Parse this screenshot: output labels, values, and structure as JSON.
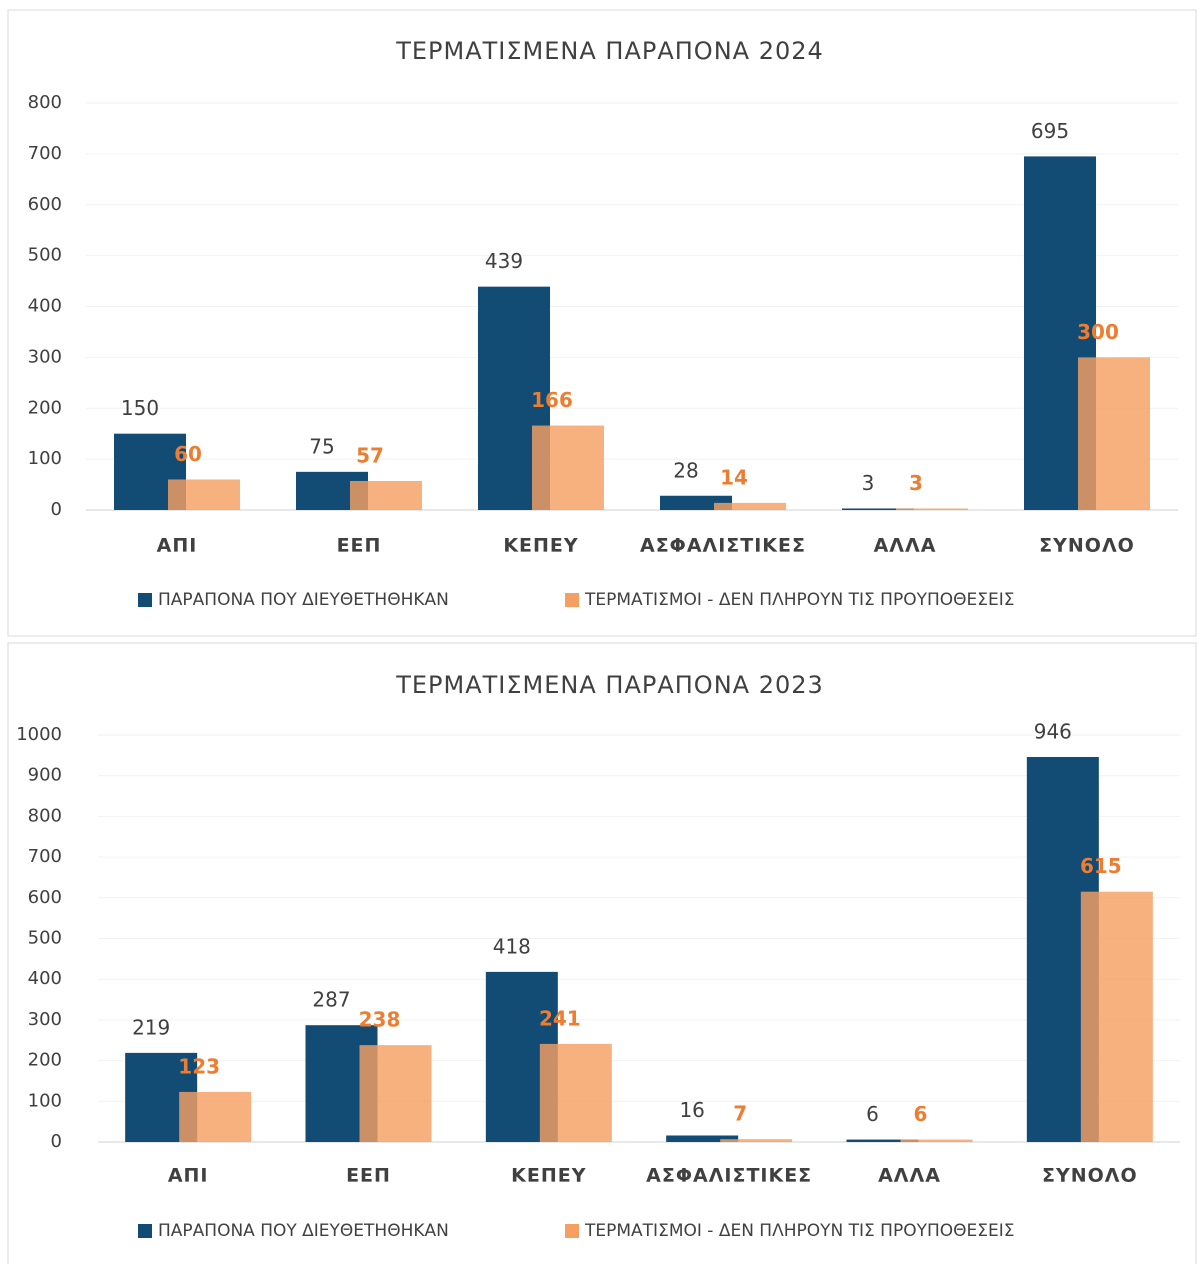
{
  "chart_data": [
    {
      "type": "bar",
      "title": "ΤΕΡΜΑΤΙΣΜΕΝΑ ΠΑΡΑΠΟΝΑ 2024",
      "categories": [
        "ΑΠΙ",
        "ΕΕΠ",
        "ΚΕΠΕΥ",
        "ΑΣΦΑΛΙΣΤΙΚΕΣ",
        "ΑΛΛΑ",
        "ΣΥΝΟΛΟ"
      ],
      "series": [
        {
          "name": "ΠΑΡΑΠΟΝΑ ΠΟΥ ΔΙΕΥΘΕΤΗΘΗΚΑΝ",
          "color": "#124b74",
          "values": [
            150,
            75,
            439,
            28,
            3,
            695
          ]
        },
        {
          "name": "ΤΕΡΜΑΤΙΣΜΟΙ - ΔΕΝ ΠΛΗΡΟΥΝ ΤΙΣ ΠΡΟΥΠΟΘΕΣΕΙΣ",
          "color": "#f4a062",
          "values": [
            60,
            57,
            166,
            14,
            3,
            300
          ]
        }
      ],
      "ylim": [
        0,
        800
      ],
      "yticks": [
        0,
        100,
        200,
        300,
        400,
        500,
        600,
        700,
        800
      ],
      "grid": true,
      "legend": "bottom"
    },
    {
      "type": "bar",
      "title": "ΤΕΡΜΑΤΙΣΜΕΝΑ ΠΑΡΑΠΟΝΑ 2023",
      "categories": [
        "ΑΠΙ",
        "ΕΕΠ",
        "ΚΕΠΕΥ",
        "ΑΣΦΑΛΙΣΤΙΚΕΣ",
        "ΑΛΛΑ",
        "ΣΥΝΟΛΟ"
      ],
      "series": [
        {
          "name": "ΠΑΡΑΠΟΝΑ ΠΟΥ ΔΙΕΥΘΕΤΗΘΗΚΑΝ",
          "color": "#124b74",
          "values": [
            219,
            287,
            418,
            16,
            6,
            946
          ]
        },
        {
          "name": "ΤΕΡΜΑΤΙΣΜΟΙ - ΔΕΝ ΠΛΗΡΟΥΝ ΤΙΣ ΠΡΟΥΠΟΘΕΣΕΙΣ",
          "color": "#f4a062",
          "values": [
            123,
            238,
            241,
            7,
            6,
            615
          ]
        }
      ],
      "ylim": [
        0,
        1000
      ],
      "yticks": [
        0,
        100,
        200,
        300,
        400,
        500,
        600,
        700,
        800,
        900,
        1000
      ],
      "grid": true,
      "legend": "bottom"
    }
  ]
}
